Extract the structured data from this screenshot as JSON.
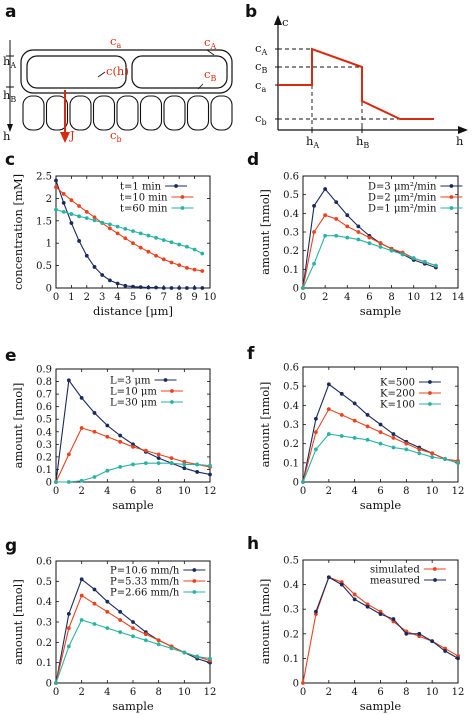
{
  "colors": {
    "black": "#111111",
    "navy": "#1b2a5e",
    "red": "#e8431d",
    "teal": "#2ab3a3",
    "diag": "#d62b0f"
  },
  "panel_labels": [
    "a",
    "b",
    "c",
    "d",
    "e",
    "f",
    "g",
    "h"
  ],
  "diagram_a": {
    "c_a": "c",
    "c_a_sub": "a",
    "c_A": "c",
    "c_A_sub": "A",
    "c_h": "c(h)",
    "c_B": "c",
    "c_B_sub": "B",
    "h_A": "h",
    "h_A_sub": "A",
    "h_B": "h",
    "h_B_sub": "B",
    "J": "J",
    "c_b": "c",
    "c_b_sub": "b",
    "h": "h"
  },
  "diagram_b": {
    "y_axis": "c",
    "x_axis": "h",
    "c_A": "c",
    "c_A_sub": "A",
    "c_B": "c",
    "c_B_sub": "B",
    "c_a": "c",
    "c_a_sub": "a",
    "c_b": "c",
    "c_b_sub": "b",
    "h_A": "h",
    "h_A_sub": "A",
    "h_B": "h",
    "h_B_sub": "B"
  },
  "chart_data": [
    {
      "panel": "c",
      "type": "line",
      "xlabel": "distance [μm]",
      "ylabel": "concentration [mM]",
      "xlim": [
        0,
        10
      ],
      "ylim": [
        0,
        2.5
      ],
      "xticks": [
        "0",
        "1",
        "2",
        "3",
        "4",
        "5",
        "6",
        "7",
        "8",
        "9",
        "10"
      ],
      "yticks": [
        "0",
        "0.5",
        "1",
        "1.5",
        "2",
        "2.5"
      ],
      "legend": "top-right",
      "series": [
        {
          "name": "t=1 min",
          "color": "navy",
          "x": [
            0,
            0.5,
            1,
            1.5,
            2,
            2.5,
            3,
            3.5,
            4,
            4.5,
            5,
            5.5,
            6,
            6.5,
            7,
            7.5,
            8,
            8.5,
            9,
            9.5
          ],
          "y": [
            2.4,
            1.9,
            1.45,
            1.05,
            0.72,
            0.47,
            0.29,
            0.17,
            0.1,
            0.05,
            0.03,
            0.02,
            0.01,
            0.01,
            0.0,
            0.0,
            0.0,
            0.0,
            0.0,
            0.0
          ]
        },
        {
          "name": "t=10 min",
          "color": "red",
          "x": [
            0,
            0.5,
            1,
            1.5,
            2,
            2.5,
            3,
            3.5,
            4,
            4.5,
            5,
            5.5,
            6,
            6.5,
            7,
            7.5,
            8,
            8.5,
            9,
            9.5
          ],
          "y": [
            2.25,
            2.1,
            1.96,
            1.83,
            1.7,
            1.58,
            1.45,
            1.33,
            1.22,
            1.11,
            1.0,
            0.9,
            0.81,
            0.72,
            0.64,
            0.57,
            0.51,
            0.45,
            0.41,
            0.38
          ]
        },
        {
          "name": "t=60 min",
          "color": "teal",
          "x": [
            0,
            0.5,
            1,
            1.5,
            2,
            2.5,
            3,
            3.5,
            4,
            4.5,
            5,
            5.5,
            6,
            6.5,
            7,
            7.5,
            8,
            8.5,
            9,
            9.5
          ],
          "y": [
            1.75,
            1.7,
            1.65,
            1.6,
            1.56,
            1.51,
            1.46,
            1.42,
            1.37,
            1.32,
            1.27,
            1.22,
            1.17,
            1.12,
            1.07,
            1.02,
            0.97,
            0.92,
            0.86,
            0.77
          ]
        }
      ]
    },
    {
      "panel": "d",
      "type": "line",
      "xlabel": "sample",
      "ylabel": "amount [nmol]",
      "xlim": [
        0,
        14
      ],
      "ylim": [
        0,
        0.6
      ],
      "xticks": [
        "0",
        "2",
        "4",
        "6",
        "8",
        "10",
        "12",
        "14"
      ],
      "yticks": [
        "0",
        "0.1",
        "0.2",
        "0.3",
        "0.4",
        "0.5",
        "0.6"
      ],
      "legend": "top-right",
      "series": [
        {
          "name": "D=3 μm²/min",
          "color": "navy",
          "x": [
            0,
            1,
            2,
            3,
            4,
            5,
            6,
            7,
            8,
            9,
            10,
            11,
            12
          ],
          "y": [
            0.0,
            0.44,
            0.53,
            0.46,
            0.39,
            0.33,
            0.28,
            0.24,
            0.21,
            0.18,
            0.15,
            0.13,
            0.11
          ]
        },
        {
          "name": "D=2 μm²/min",
          "color": "red",
          "x": [
            0,
            1,
            2,
            3,
            4,
            5,
            6,
            7,
            8,
            9,
            10,
            11,
            12
          ],
          "y": [
            0.0,
            0.3,
            0.39,
            0.37,
            0.33,
            0.3,
            0.27,
            0.24,
            0.21,
            0.19,
            0.16,
            0.14,
            0.12
          ]
        },
        {
          "name": "D=1 μm²/min",
          "color": "teal",
          "x": [
            0,
            1,
            2,
            3,
            4,
            5,
            6,
            7,
            8,
            9,
            10,
            11,
            12
          ],
          "y": [
            0.0,
            0.13,
            0.28,
            0.28,
            0.27,
            0.26,
            0.24,
            0.22,
            0.2,
            0.18,
            0.16,
            0.14,
            0.12
          ]
        }
      ]
    },
    {
      "panel": "e",
      "type": "line",
      "xlabel": "sample",
      "ylabel": "amount [nmol]",
      "xlim": [
        0,
        12
      ],
      "ylim": [
        0,
        0.9
      ],
      "xticks": [
        "0",
        "2",
        "4",
        "6",
        "8",
        "10",
        "12"
      ],
      "yticks": [
        "0",
        "0.1",
        "0.2",
        "0.3",
        "0.4",
        "0.5",
        "0.6",
        "0.7",
        "0.8",
        "0.9"
      ],
      "legend": "top-right",
      "series": [
        {
          "name": "L=3 μm",
          "color": "navy",
          "x": [
            0,
            1,
            2,
            3,
            4,
            5,
            6,
            7,
            8,
            9,
            10,
            11,
            12
          ],
          "y": [
            0.0,
            0.81,
            0.67,
            0.55,
            0.45,
            0.37,
            0.3,
            0.24,
            0.19,
            0.15,
            0.11,
            0.08,
            0.06
          ]
        },
        {
          "name": "L=10 μm",
          "color": "red",
          "x": [
            0,
            1,
            2,
            3,
            4,
            5,
            6,
            7,
            8,
            9,
            10,
            11,
            12
          ],
          "y": [
            0.0,
            0.22,
            0.43,
            0.4,
            0.36,
            0.32,
            0.28,
            0.25,
            0.22,
            0.19,
            0.16,
            0.14,
            0.12
          ]
        },
        {
          "name": "L=30 μm",
          "color": "teal",
          "x": [
            0,
            1,
            2,
            3,
            4,
            5,
            6,
            7,
            8,
            9,
            10,
            11,
            12
          ],
          "y": [
            0.0,
            0.0,
            0.01,
            0.04,
            0.09,
            0.12,
            0.14,
            0.15,
            0.15,
            0.15,
            0.14,
            0.14,
            0.13
          ]
        }
      ]
    },
    {
      "panel": "f",
      "type": "line",
      "xlabel": "sample",
      "ylabel": "amount [nmol]",
      "xlim": [
        0,
        12
      ],
      "ylim": [
        0,
        0.6
      ],
      "xticks": [
        "0",
        "2",
        "4",
        "6",
        "8",
        "10",
        "12"
      ],
      "yticks": [
        "0",
        "0.1",
        "0.2",
        "0.3",
        "0.4",
        "0.5",
        "0.6"
      ],
      "legend": "top-right",
      "series": [
        {
          "name": "K=500",
          "color": "navy",
          "x": [
            0,
            1,
            2,
            3,
            4,
            5,
            6,
            7,
            8,
            9,
            10,
            11,
            12
          ],
          "y": [
            0.0,
            0.33,
            0.51,
            0.46,
            0.41,
            0.35,
            0.3,
            0.25,
            0.21,
            0.18,
            0.15,
            0.12,
            0.1
          ]
        },
        {
          "name": "K=200",
          "color": "red",
          "x": [
            0,
            1,
            2,
            3,
            4,
            5,
            6,
            7,
            8,
            9,
            10,
            11,
            12
          ],
          "y": [
            0.0,
            0.26,
            0.38,
            0.35,
            0.32,
            0.29,
            0.26,
            0.23,
            0.2,
            0.17,
            0.15,
            0.12,
            0.11
          ]
        },
        {
          "name": "K=100",
          "color": "teal",
          "x": [
            0,
            1,
            2,
            3,
            4,
            5,
            6,
            7,
            8,
            9,
            10,
            11,
            12
          ],
          "y": [
            0.0,
            0.17,
            0.25,
            0.24,
            0.23,
            0.22,
            0.2,
            0.18,
            0.17,
            0.15,
            0.13,
            0.12,
            0.1
          ]
        }
      ]
    },
    {
      "panel": "g",
      "type": "line",
      "xlabel": "sample",
      "ylabel": "amount [nmol]",
      "xlim": [
        0,
        12
      ],
      "ylim": [
        0,
        0.6
      ],
      "xticks": [
        "0",
        "2",
        "4",
        "6",
        "8",
        "10",
        "12"
      ],
      "yticks": [
        "0",
        "0.1",
        "0.2",
        "0.3",
        "0.4",
        "0.5",
        "0.6"
      ],
      "legend": "top-right",
      "series": [
        {
          "name": "P=10.6 mm/h",
          "color": "navy",
          "x": [
            0,
            1,
            2,
            3,
            4,
            5,
            6,
            7,
            8,
            9,
            10,
            11,
            12
          ],
          "y": [
            0.0,
            0.34,
            0.51,
            0.46,
            0.4,
            0.35,
            0.3,
            0.25,
            0.21,
            0.18,
            0.15,
            0.12,
            0.1
          ]
        },
        {
          "name": "P=5.33 mm/h",
          "color": "red",
          "x": [
            0,
            1,
            2,
            3,
            4,
            5,
            6,
            7,
            8,
            9,
            10,
            11,
            12
          ],
          "y": [
            0.0,
            0.27,
            0.43,
            0.39,
            0.35,
            0.31,
            0.27,
            0.24,
            0.21,
            0.18,
            0.15,
            0.13,
            0.11
          ]
        },
        {
          "name": "P=2.66 mm/h",
          "color": "teal",
          "x": [
            0,
            1,
            2,
            3,
            4,
            5,
            6,
            7,
            8,
            9,
            10,
            11,
            12
          ],
          "y": [
            0.0,
            0.18,
            0.31,
            0.29,
            0.27,
            0.25,
            0.23,
            0.21,
            0.19,
            0.17,
            0.15,
            0.13,
            0.12
          ]
        }
      ]
    },
    {
      "panel": "h",
      "type": "line",
      "xlabel": "sample",
      "ylabel": "amount [nmol]",
      "xlim": [
        0,
        12
      ],
      "ylim": [
        0,
        0.5
      ],
      "xticks": [
        "0",
        "2",
        "4",
        "6",
        "8",
        "10",
        "12"
      ],
      "yticks": [
        "0",
        "0.1",
        "0.2",
        "0.3",
        "0.4",
        "0.5"
      ],
      "legend": "top-right",
      "series": [
        {
          "name": "simulated",
          "color": "red",
          "x": [
            0,
            1,
            2,
            3,
            4,
            5,
            6,
            7,
            8,
            9,
            10,
            11,
            12
          ],
          "y": [
            0.0,
            0.28,
            0.43,
            0.41,
            0.36,
            0.32,
            0.29,
            0.25,
            0.21,
            0.19,
            0.17,
            0.14,
            0.11
          ]
        },
        {
          "name": "measured",
          "color": "navy",
          "x": [
            1,
            2,
            3,
            4,
            5,
            6,
            7,
            8,
            9,
            10,
            11,
            12
          ],
          "y": [
            0.29,
            0.43,
            0.4,
            0.34,
            0.31,
            0.28,
            0.26,
            0.2,
            0.2,
            0.17,
            0.13,
            0.1
          ]
        }
      ]
    }
  ]
}
